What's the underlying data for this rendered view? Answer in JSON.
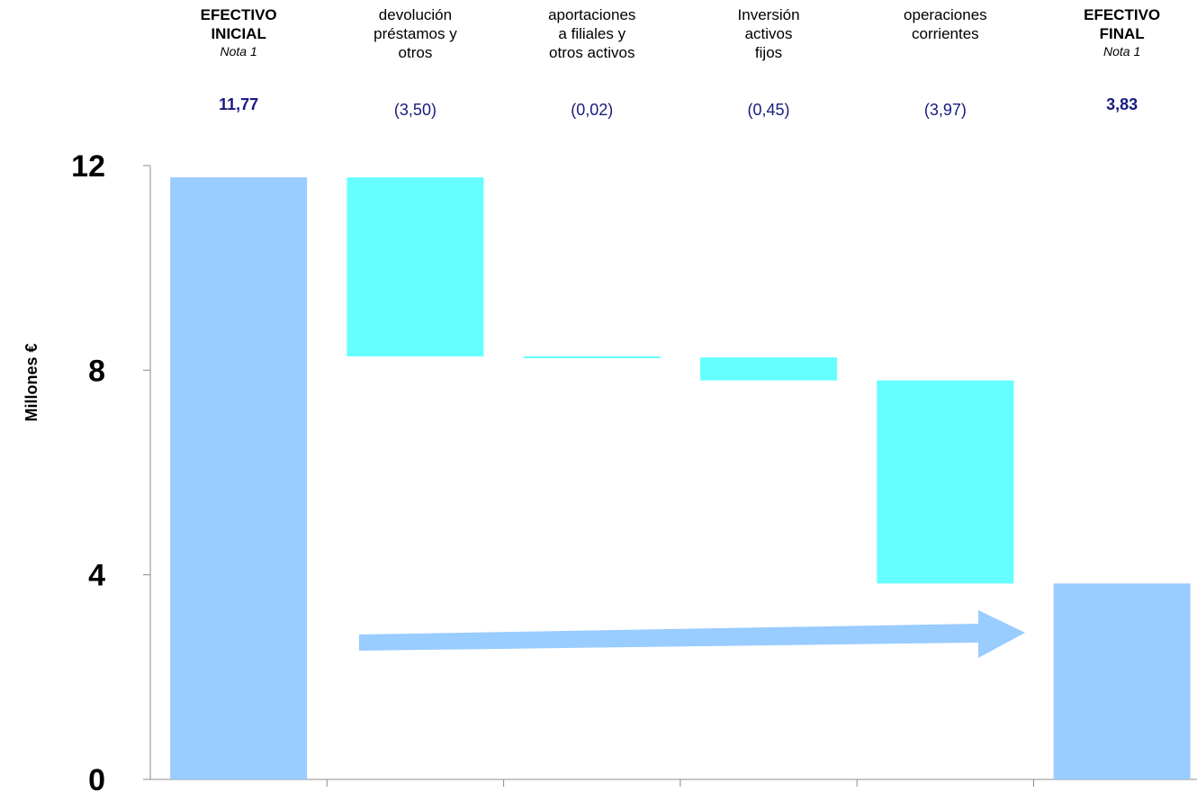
{
  "chart_data": {
    "type": "bar",
    "subtype": "waterfall",
    "ylabel": "Millones €",
    "ylim": [
      0,
      12
    ],
    "yticks": [
      "0",
      "4",
      "8",
      "12"
    ],
    "grid": false,
    "colors": {
      "total": "#99ccff",
      "delta": "#66ffff",
      "arrow": "#99ccff",
      "value_text": "#1a1a80"
    },
    "categories": [
      {
        "label": "EFECTIVO\nINICIAL",
        "note": "Nota 1",
        "value_label": "11,77",
        "kind": "total",
        "start": 0,
        "end": 11.77
      },
      {
        "label": "devolución\npréstamos y\notros",
        "note": "",
        "value_label": "(3,50)",
        "kind": "delta",
        "start": 11.77,
        "end": 8.27
      },
      {
        "label": "aportaciones\na filiales y\notros activos",
        "note": "",
        "value_label": "(0,02)",
        "kind": "delta",
        "start": 8.27,
        "end": 8.25
      },
      {
        "label": "Inversión\nactivos\nfijos",
        "note": "",
        "value_label": "(0,45)",
        "kind": "delta",
        "start": 8.25,
        "end": 7.8
      },
      {
        "label": "operaciones\ncorrientes",
        "note": "",
        "value_label": "(3,97)",
        "kind": "delta",
        "start": 7.8,
        "end": 3.83
      },
      {
        "label": "EFECTIVO\nFINAL",
        "note": "Nota 1",
        "value_label": "3,83",
        "kind": "total",
        "start": 0,
        "end": 3.83
      }
    ]
  }
}
